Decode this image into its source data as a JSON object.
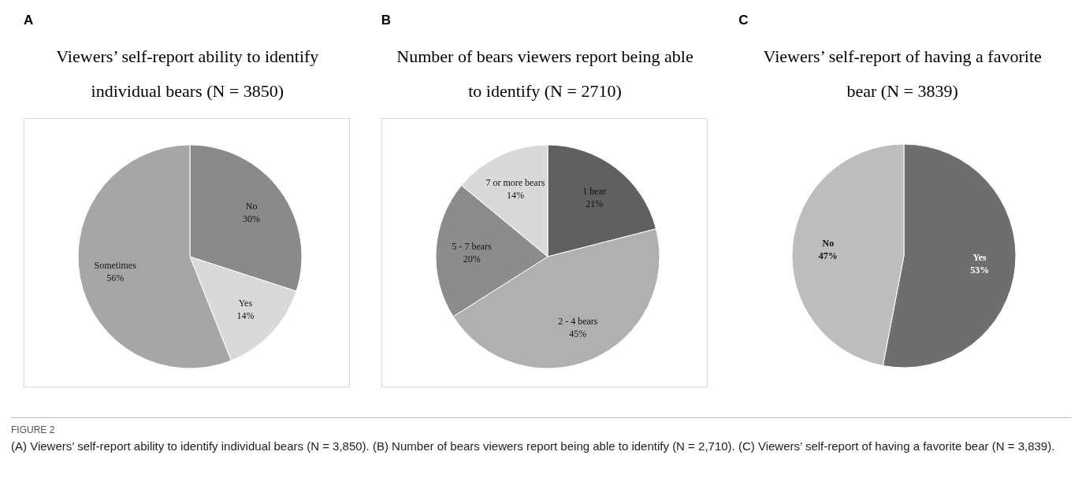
{
  "chart_data": [
    {
      "type": "pie",
      "title": "Viewers’ self-report ability to identify individual bears (N = 3850)",
      "annotations": [
        "A"
      ],
      "categories": [
        "No",
        "Yes",
        "Sometimes"
      ],
      "values": [
        30,
        14,
        56
      ],
      "colors": [
        "#8a8a8a",
        "#d9d9d9",
        "#a6a6a6"
      ],
      "value_labels": [
        "30%",
        "14%",
        "56%"
      ]
    },
    {
      "type": "pie",
      "title": "Number of bears viewers report being able to identify (N = 2710)",
      "annotations": [
        "B"
      ],
      "categories": [
        "1 bear",
        "2 - 4 bears",
        "5 - 7 bears",
        "7 or more bears"
      ],
      "values": [
        21,
        45,
        20,
        14
      ],
      "colors": [
        "#606060",
        "#b0b0b0",
        "#8c8c8c",
        "#d9d9d9"
      ],
      "value_labels": [
        "21%",
        "45%",
        "20%",
        "14%"
      ]
    },
    {
      "type": "pie",
      "title": "Viewers’ self-report of having a favorite bear (N = 3839)",
      "annotations": [
        "C",
        "FIGURE 2",
        "(A) Viewers’ self-report ability to identify individual bears (N = 3,850). (B) Number of bears viewers report being able to identify (N = 2,710). (C) Viewers’ self-report of having a favorite bear (N = 3,839)."
      ],
      "categories": [
        "Yes",
        "No"
      ],
      "values": [
        53,
        47
      ],
      "colors": [
        "#6e6e6e",
        "#bdbdbd"
      ],
      "value_labels": [
        "53%",
        "47%"
      ]
    }
  ]
}
